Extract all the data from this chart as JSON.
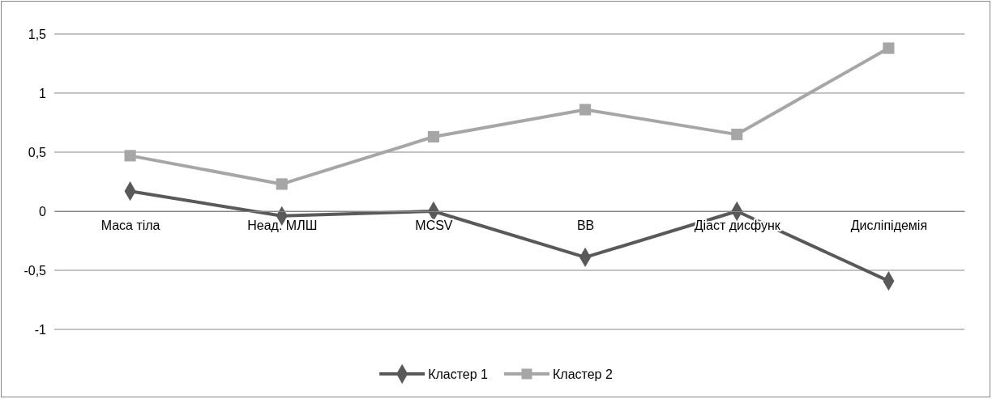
{
  "chart_data": {
    "type": "line",
    "categories": [
      "Маса тіла",
      "Неад. МЛШ",
      "MCSV",
      "ВВ",
      "Діаст дисфунк",
      "Дисліпідемія"
    ],
    "series": [
      {
        "name": "Кластер 1",
        "color": "#595959",
        "marker": "diamond",
        "values": [
          0.17,
          -0.04,
          0,
          -0.39,
          0,
          -0.59
        ]
      },
      {
        "name": "Кластер 2",
        "color": "#a6a6a6",
        "marker": "square",
        "values": [
          0.47,
          0.23,
          0.63,
          0.86,
          0.65,
          1.38
        ]
      }
    ],
    "ylim": [
      -1,
      1.5
    ],
    "yticks": [
      {
        "value": -1,
        "label": "-1"
      },
      {
        "value": -0.5,
        "label": "-0,5"
      },
      {
        "value": 0,
        "label": "0"
      },
      {
        "value": 0.5,
        "label": "0,5"
      },
      {
        "value": 1,
        "label": "1"
      },
      {
        "value": 1.5,
        "label": "1,5"
      }
    ],
    "grid": "y",
    "legend": "bottom",
    "line_style": "solid"
  }
}
